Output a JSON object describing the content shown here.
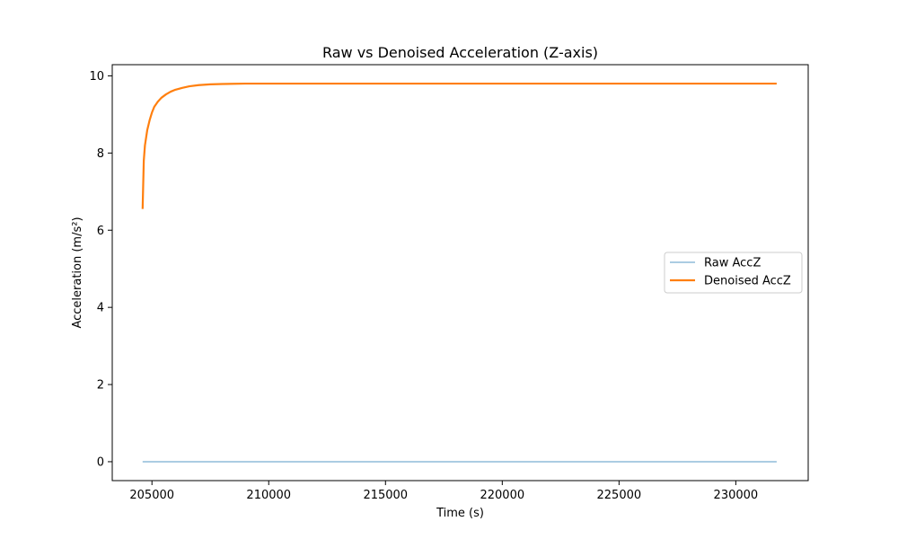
{
  "chart_data": {
    "type": "line",
    "title": "Raw vs Denoised Acceleration (Z-axis)",
    "xlabel": "Time (s)",
    "ylabel": "Acceleration (m/s²)",
    "xlim": [
      203300,
      233100
    ],
    "ylim": [
      -0.49,
      10.29
    ],
    "xticks": [
      205000,
      210000,
      215000,
      220000,
      225000,
      230000
    ],
    "xtick_labels": [
      "205000",
      "210000",
      "215000",
      "220000",
      "225000",
      "230000"
    ],
    "yticks": [
      0,
      2,
      4,
      6,
      8,
      10
    ],
    "ytick_labels": [
      "0",
      "2",
      "4",
      "6",
      "8",
      "10"
    ],
    "grid": false,
    "legend_position": "center-right",
    "series": [
      {
        "name": "Raw AccZ",
        "color": "#1f77b4",
        "opacity": 0.5,
        "x": [
          204600,
          231750
        ],
        "y": [
          0.0,
          0.0
        ]
      },
      {
        "name": "Denoised AccZ",
        "color": "#ff7f0e",
        "opacity": 1.0,
        "x": [
          204600,
          204650,
          204700,
          204800,
          204900,
          205000,
          205100,
          205250,
          205400,
          205600,
          205800,
          206000,
          206300,
          206600,
          207000,
          207500,
          208000,
          209000,
          210000,
          215000,
          220000,
          225000,
          230000,
          231750
        ],
        "y": [
          6.55,
          7.8,
          8.2,
          8.6,
          8.85,
          9.05,
          9.2,
          9.33,
          9.43,
          9.52,
          9.59,
          9.64,
          9.69,
          9.73,
          9.76,
          9.78,
          9.79,
          9.8,
          9.8,
          9.8,
          9.8,
          9.8,
          9.8,
          9.8
        ]
      }
    ]
  }
}
